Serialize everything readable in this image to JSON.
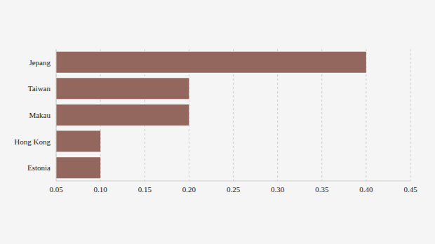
{
  "chart_data": {
    "type": "bar",
    "orientation": "horizontal",
    "categories": [
      "Jepang",
      "Taiwan",
      "Makau",
      "Hong Kong",
      "Estonia"
    ],
    "values": [
      0.4,
      0.2,
      0.2,
      0.1,
      0.1
    ],
    "color": "#93665e",
    "xlim": [
      0.05,
      0.45
    ],
    "xticks": [
      0.05,
      {
        "value": 0.1,
        "label": "0.10"
      },
      0.15,
      {
        "value": 0.2,
        "label": "0.20"
      },
      0.25,
      {
        "value": 0.3,
        "label": "0.30"
      },
      0.35,
      {
        "value": 0.4,
        "label": "0.40"
      },
      0.45
    ],
    "grid": true
  }
}
